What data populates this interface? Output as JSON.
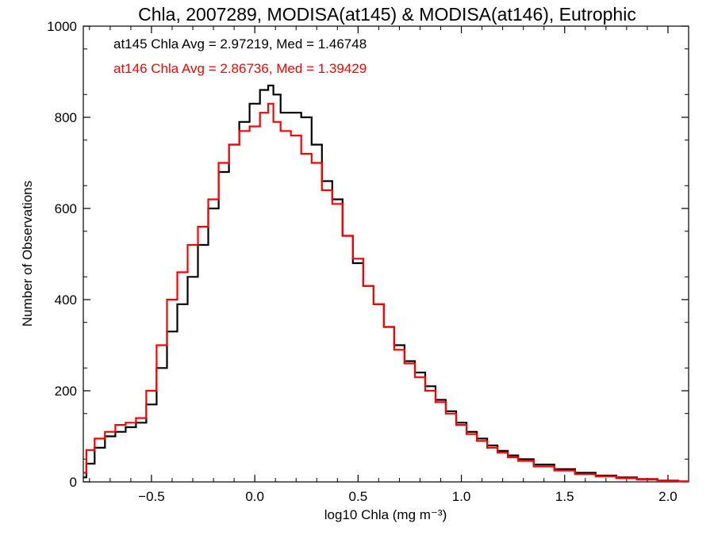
{
  "chart_data": {
    "type": "line",
    "style": "step-histogram",
    "title": "Chla, 2007289, MODISA(at145) & MODISA(at146), Eutrophic",
    "xlabel": "log10 Chla (mg m⁻³)",
    "ylabel": "Number of Observations",
    "xlim": [
      -0.83,
      2.1
    ],
    "ylim": [
      0,
      1000
    ],
    "x_ticks": [
      -0.5,
      0.0,
      0.5,
      1.0,
      1.5,
      2.0
    ],
    "x_tick_labels": [
      "−0.5",
      "0.0",
      "0.5",
      "1.0",
      "1.5",
      "2.0"
    ],
    "y_ticks": [
      0,
      200,
      400,
      600,
      800,
      1000
    ],
    "y_tick_labels": [
      "0",
      "200",
      "400",
      "600",
      "800",
      "1000"
    ],
    "grid": false,
    "annotations": [
      {
        "text": "at145 Chla Avg = 2.97219, Med = 1.46748",
        "color": "#000000"
      },
      {
        "text": "at146 Chla Avg = 2.86736, Med = 1.39429",
        "color": "#ff0000"
      }
    ],
    "series": [
      {
        "color": "#000000",
        "x": [
          -0.83,
          -0.8,
          -0.75,
          -0.7,
          -0.65,
          -0.6,
          -0.55,
          -0.5,
          -0.45,
          -0.4,
          -0.35,
          -0.3,
          -0.25,
          -0.2,
          -0.15,
          -0.1,
          -0.05,
          0.0,
          0.05,
          0.08,
          0.1,
          0.15,
          0.2,
          0.25,
          0.3,
          0.35,
          0.4,
          0.45,
          0.5,
          0.55,
          0.6,
          0.65,
          0.7,
          0.75,
          0.8,
          0.85,
          0.9,
          0.95,
          1.0,
          1.05,
          1.1,
          1.15,
          1.2,
          1.25,
          1.3,
          1.4,
          1.5,
          1.6,
          1.7,
          1.8,
          1.9,
          2.0,
          2.1
        ],
        "y": [
          10,
          40,
          75,
          100,
          110,
          120,
          130,
          170,
          250,
          330,
          390,
          450,
          520,
          600,
          680,
          740,
          790,
          830,
          860,
          870,
          850,
          810,
          810,
          800,
          740,
          660,
          620,
          540,
          480,
          430,
          390,
          340,
          300,
          265,
          240,
          210,
          180,
          155,
          130,
          110,
          95,
          80,
          68,
          58,
          50,
          38,
          28,
          20,
          14,
          10,
          6,
          3,
          1
        ]
      },
      {
        "color": "#ff0000",
        "x": [
          -0.83,
          -0.8,
          -0.75,
          -0.7,
          -0.65,
          -0.6,
          -0.55,
          -0.5,
          -0.45,
          -0.4,
          -0.35,
          -0.3,
          -0.25,
          -0.2,
          -0.15,
          -0.1,
          -0.05,
          0.0,
          0.05,
          0.08,
          0.1,
          0.15,
          0.2,
          0.25,
          0.3,
          0.35,
          0.4,
          0.45,
          0.5,
          0.55,
          0.6,
          0.65,
          0.7,
          0.75,
          0.8,
          0.85,
          0.9,
          0.95,
          1.0,
          1.05,
          1.1,
          1.15,
          1.2,
          1.25,
          1.3,
          1.4,
          1.5,
          1.6,
          1.7,
          1.8,
          1.9,
          2.0,
          2.1
        ],
        "y": [
          20,
          70,
          95,
          110,
          125,
          130,
          140,
          200,
          300,
          400,
          460,
          520,
          560,
          620,
          700,
          740,
          770,
          780,
          810,
          830,
          790,
          770,
          760,
          720,
          700,
          640,
          610,
          540,
          490,
          430,
          390,
          340,
          290,
          260,
          230,
          200,
          175,
          150,
          125,
          105,
          90,
          75,
          64,
          54,
          46,
          34,
          25,
          17,
          12,
          8,
          5,
          2,
          1
        ]
      }
    ]
  }
}
